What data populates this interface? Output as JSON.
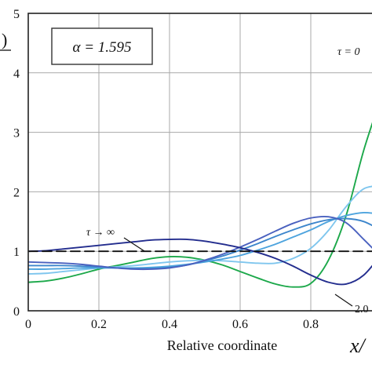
{
  "chart_data": {
    "type": "line",
    "title": "",
    "xlabel": "Relative coordinate",
    "xlabel_symbol": "x/",
    "ylabel_fragment": ")",
    "xlim": [
      0,
      1.0
    ],
    "ylim": [
      0,
      5
    ],
    "xticks": [
      "0",
      "0.2",
      "0.4",
      "0.6",
      "0.8"
    ],
    "yticks": [
      "0",
      "1",
      "2",
      "3",
      "4",
      "5"
    ],
    "grid": true,
    "alpha_box": "α = 1.595",
    "annotations": {
      "tau_zero": "τ = 0",
      "tau_inf": "τ → ∞",
      "tau_2": "2.0"
    },
    "series": [
      {
        "color": "#1ca84a",
        "x": [
          0,
          0.05,
          0.1,
          0.15,
          0.2,
          0.25,
          0.3,
          0.35,
          0.4,
          0.45,
          0.5,
          0.55,
          0.6,
          0.65,
          0.7,
          0.75,
          0.8,
          0.85,
          0.9,
          0.95,
          1.0
        ],
        "y": [
          0.48,
          0.5,
          0.55,
          0.62,
          0.7,
          0.76,
          0.82,
          0.88,
          0.91,
          0.9,
          0.85,
          0.77,
          0.66,
          0.55,
          0.45,
          0.4,
          0.46,
          0.85,
          1.6,
          2.7,
          3.6
        ]
      },
      {
        "color": "#7fc6ee",
        "x": [
          0,
          0.05,
          0.1,
          0.15,
          0.2,
          0.25,
          0.3,
          0.35,
          0.4,
          0.45,
          0.5,
          0.55,
          0.6,
          0.65,
          0.7,
          0.75,
          0.8,
          0.85,
          0.9,
          0.95,
          1.0
        ],
        "y": [
          0.62,
          0.63,
          0.66,
          0.69,
          0.72,
          0.74,
          0.76,
          0.79,
          0.82,
          0.84,
          0.85,
          0.84,
          0.82,
          0.8,
          0.8,
          0.88,
          1.05,
          1.35,
          1.75,
          2.05,
          2.1
        ]
      },
      {
        "color": "#4ea4de",
        "x": [
          0,
          0.05,
          0.1,
          0.15,
          0.2,
          0.25,
          0.3,
          0.35,
          0.4,
          0.45,
          0.5,
          0.55,
          0.6,
          0.65,
          0.7,
          0.75,
          0.8,
          0.85,
          0.9,
          0.95,
          1.0
        ],
        "y": [
          0.7,
          0.7,
          0.71,
          0.72,
          0.72,
          0.72,
          0.72,
          0.73,
          0.75,
          0.78,
          0.82,
          0.87,
          0.93,
          1.02,
          1.12,
          1.24,
          1.36,
          1.5,
          1.6,
          1.65,
          1.62
        ]
      },
      {
        "color": "#3d86cc",
        "x": [
          0,
          0.05,
          0.1,
          0.15,
          0.2,
          0.25,
          0.3,
          0.35,
          0.4,
          0.45,
          0.5,
          0.55,
          0.6,
          0.65,
          0.7,
          0.75,
          0.8,
          0.85,
          0.9,
          0.95,
          1.0
        ],
        "y": [
          0.76,
          0.76,
          0.76,
          0.75,
          0.74,
          0.72,
          0.71,
          0.71,
          0.73,
          0.77,
          0.84,
          0.92,
          1.02,
          1.13,
          1.25,
          1.36,
          1.46,
          1.53,
          1.55,
          1.5,
          1.35
        ]
      },
      {
        "color": "#4a61bf",
        "x": [
          0,
          0.05,
          0.1,
          0.15,
          0.2,
          0.25,
          0.3,
          0.35,
          0.4,
          0.45,
          0.5,
          0.55,
          0.6,
          0.65,
          0.7,
          0.75,
          0.8,
          0.85,
          0.9,
          0.95,
          1.0
        ],
        "y": [
          0.82,
          0.81,
          0.8,
          0.78,
          0.75,
          0.72,
          0.7,
          0.7,
          0.72,
          0.77,
          0.85,
          0.95,
          1.07,
          1.2,
          1.34,
          1.47,
          1.56,
          1.58,
          1.48,
          1.2,
          0.9
        ]
      },
      {
        "color": "#232d8e",
        "x": [
          0,
          0.05,
          0.1,
          0.15,
          0.2,
          0.25,
          0.3,
          0.35,
          0.4,
          0.45,
          0.5,
          0.55,
          0.6,
          0.65,
          0.7,
          0.75,
          0.8,
          0.85,
          0.9,
          0.95,
          1.0
        ],
        "y": [
          1.0,
          1.01,
          1.04,
          1.07,
          1.1,
          1.13,
          1.16,
          1.19,
          1.2,
          1.2,
          1.17,
          1.12,
          1.06,
          0.98,
          0.88,
          0.75,
          0.6,
          0.48,
          0.45,
          0.6,
          0.95
        ]
      },
      {
        "color": "#111111",
        "dash": true,
        "x": [
          0,
          1.0
        ],
        "y": [
          1.0,
          1.0
        ]
      }
    ]
  }
}
